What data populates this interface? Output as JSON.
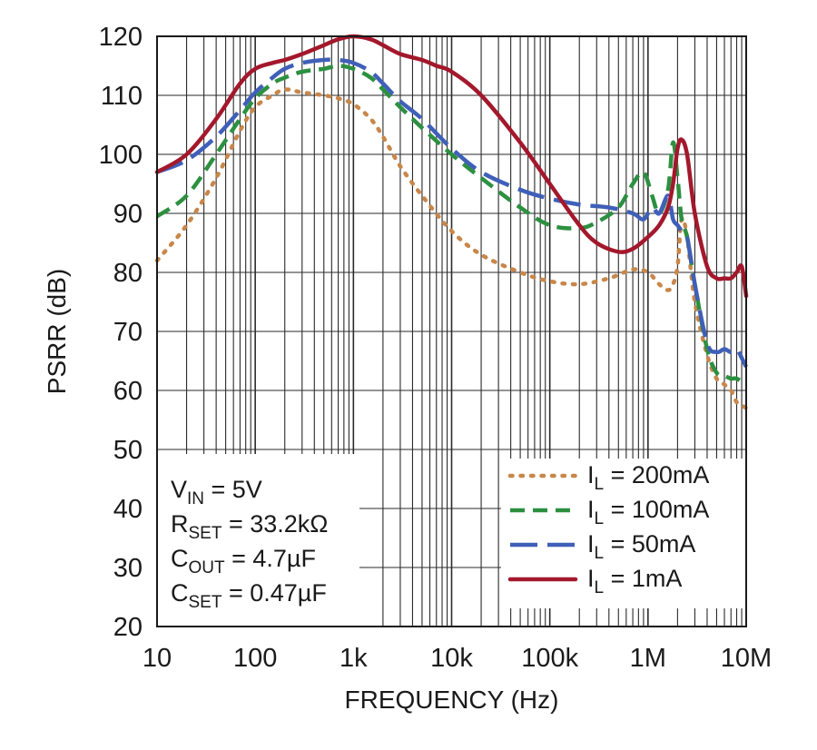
{
  "chart_data": {
    "type": "line",
    "title": "",
    "xlabel": "FREQUENCY (Hz)",
    "ylabel": "PSRR (dB)",
    "xscale": "log",
    "xlim": [
      10,
      10000000
    ],
    "ylim": [
      20,
      120
    ],
    "grid": true,
    "x_tick_labels": [
      "10",
      "100",
      "1k",
      "10k",
      "100k",
      "1M",
      "10M"
    ],
    "y_tick_labels": [
      "20",
      "30",
      "40",
      "50",
      "60",
      "70",
      "80",
      "90",
      "100",
      "110",
      "120"
    ],
    "legend_placement": "bottom-right",
    "annotations": [
      {
        "main": "V",
        "sub": "IN",
        "rest": " = 5V"
      },
      {
        "main": "R",
        "sub": "SET",
        "rest": " = 33.2kΩ"
      },
      {
        "main": "C",
        "sub": "OUT",
        "rest": " = 4.7µF"
      },
      {
        "main": "C",
        "sub": "SET",
        "rest": " = 0.47µF"
      }
    ],
    "series": [
      {
        "legend_main": "I",
        "legend_sub": "L",
        "legend_rest": " = 200mA",
        "color": "#c8874a",
        "dash": "dotted",
        "x": [
          10,
          20,
          40,
          70,
          100,
          150,
          200,
          300,
          500,
          700,
          1000,
          1500,
          2000,
          3000,
          5000,
          10000,
          20000,
          50000,
          100000,
          200000,
          400000,
          700000,
          1000000,
          1300000,
          1600000,
          1800000,
          2000000,
          2200000,
          2500000,
          3000000,
          4000000,
          5000000,
          6000000,
          7000000,
          8000000,
          9000000,
          10000000
        ],
        "y": [
          82,
          88,
          96,
          104,
          108,
          110,
          111,
          110.5,
          110,
          109.5,
          108.5,
          106,
          103,
          98,
          93,
          87,
          83,
          80,
          78.5,
          78,
          79,
          80.5,
          80,
          78,
          77,
          78,
          81,
          89,
          86,
          75,
          66,
          62,
          61,
          60,
          58,
          57.5,
          57
        ]
      },
      {
        "legend_main": "I",
        "legend_sub": "L",
        "legend_rest": " = 100mA",
        "color": "#2c9040",
        "dash": "dashed",
        "x": [
          10,
          20,
          40,
          70,
          100,
          150,
          200,
          300,
          500,
          700,
          1000,
          1500,
          2000,
          3000,
          5000,
          10000,
          20000,
          50000,
          100000,
          200000,
          300000,
          500000,
          700000,
          900000,
          1100000,
          1300000,
          1600000,
          1800000,
          2000000,
          2200000,
          2500000,
          3000000,
          4000000,
          5000000,
          6000000,
          7000000,
          8000000,
          10000000
        ],
        "y": [
          89.5,
          93,
          100,
          106,
          109.5,
          112,
          113,
          114,
          114.5,
          115,
          114.5,
          113,
          111,
          108,
          104.5,
          100,
          96,
          91,
          88,
          87.5,
          88.5,
          91,
          95,
          97,
          93,
          90,
          94,
          102,
          96,
          89,
          86,
          78,
          67,
          63,
          62.5,
          62,
          62,
          61
        ]
      },
      {
        "legend_main": "I",
        "legend_sub": "L",
        "legend_rest": " = 50mA",
        "color": "#3f5fb8",
        "dash": "longdash",
        "x": [
          10,
          20,
          40,
          70,
          100,
          150,
          200,
          300,
          500,
          700,
          1000,
          1500,
          2000,
          3000,
          5000,
          10000,
          20000,
          50000,
          100000,
          200000,
          400000,
          700000,
          900000,
          1100000,
          1300000,
          1600000,
          1800000,
          2000000,
          2200000,
          2500000,
          3000000,
          4000000,
          5000000,
          6000000,
          7000000,
          8000000,
          9000000,
          10000000
        ],
        "y": [
          97,
          99,
          103,
          107.5,
          110.5,
          113,
          114.5,
          115.5,
          116,
          116,
          115.5,
          114,
          112,
          109,
          106,
          101,
          97,
          94,
          92.5,
          91.5,
          91,
          90,
          89,
          91,
          90,
          93,
          89,
          88,
          87,
          86,
          78,
          68,
          66.5,
          67,
          66.5,
          67,
          65.5,
          64
        ]
      },
      {
        "legend_main": "I",
        "legend_sub": "L",
        "legend_rest": " = 1mA",
        "color": "#a3182c",
        "dash": "solid",
        "x": [
          10,
          20,
          40,
          70,
          100,
          150,
          200,
          300,
          500,
          700,
          1000,
          1500,
          2000,
          3000,
          5000,
          7000,
          10000,
          20000,
          50000,
          100000,
          200000,
          300000,
          500000,
          700000,
          1000000,
          1300000,
          1600000,
          1800000,
          2000000,
          2200000,
          2500000,
          3000000,
          4000000,
          5000000,
          6000000,
          7000000,
          8000000,
          9000000,
          10000000
        ],
        "y": [
          97,
          100,
          106,
          112,
          114.5,
          115.5,
          116,
          117,
          118.5,
          119.5,
          120,
          119.5,
          118.5,
          117,
          116,
          115,
          114,
          110,
          102,
          95,
          88,
          85,
          83.5,
          84,
          86,
          88,
          91,
          95,
          101,
          102.5,
          100,
          90,
          81,
          79,
          79,
          79,
          80,
          81,
          76
        ]
      }
    ]
  }
}
